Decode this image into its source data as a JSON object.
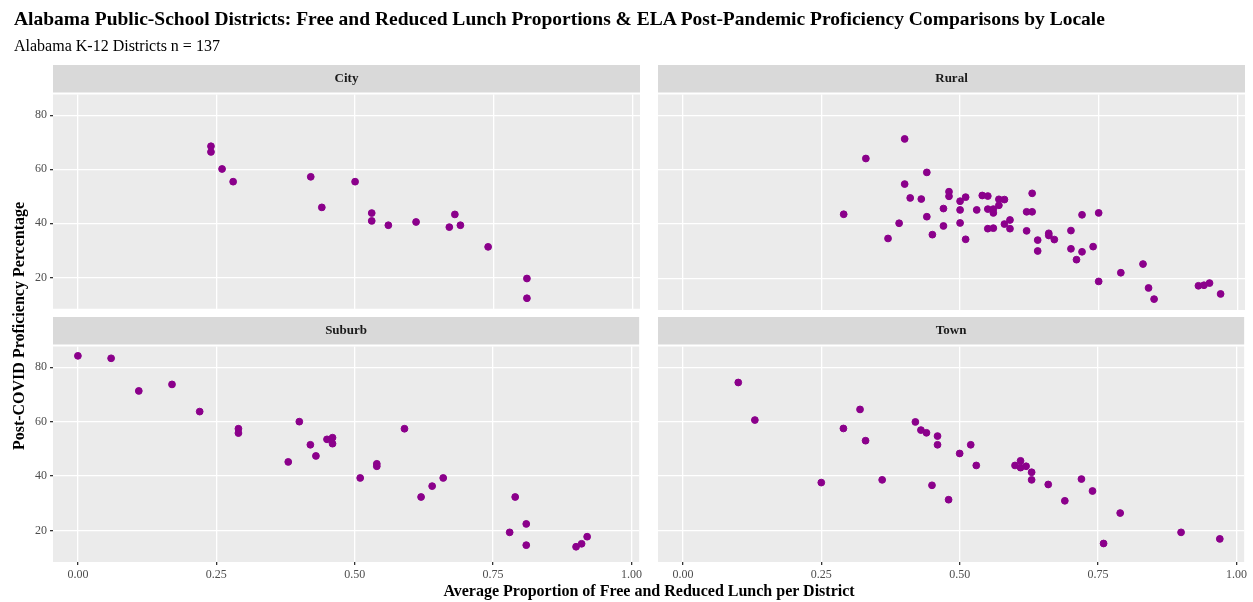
{
  "chart_data": [
    {
      "type": "scatter",
      "title": "City",
      "color": "#8b008b",
      "grid": true,
      "tick_labels": "y",
      "xlim": [
        -0.045,
        1.014
      ],
      "ylim": [
        8.4,
        87.6
      ],
      "xticks": [
        {
          "value": 0,
          "label": null
        },
        {
          "value": 0.25,
          "label": null
        },
        {
          "value": 0.5,
          "label": null
        },
        {
          "value": 0.75,
          "label": null
        },
        {
          "value": 1,
          "label": null
        }
      ],
      "yticks": [
        20,
        40,
        60,
        80
      ],
      "annotations": [
        "Alabama Public-School Districts: Free and Reduced Lunch Proportions & ELA Post-Pandemic Proficiency Comparisons by Locale",
        "Alabama K-12 Districts n = 137"
      ],
      "ylabel": "Post-COVID Proficiency Percentage",
      "x": [
        0.24,
        0.24,
        0.26,
        0.28,
        0.42,
        0.44,
        0.5,
        0.53,
        0.53,
        0.56,
        0.61,
        0.67,
        0.68,
        0.69,
        0.74,
        0.81,
        0.81
      ],
      "values": [
        68.5,
        66.4,
        60.1,
        55.4,
        57.2,
        45.9,
        55.4,
        43.8,
        40.9,
        39.3,
        40.5,
        38.6,
        43.3,
        39.3,
        31.3,
        19.6,
        12.3
      ]
    },
    {
      "type": "scatter",
      "title": "Rural",
      "color": "#8b008b",
      "grid": true,
      "tick_labels": false,
      "xlim": [
        -0.045,
        1.014
      ],
      "ylim": [
        8.4,
        87.6
      ],
      "xticks": [
        {
          "value": 0,
          "label": null
        },
        {
          "value": 0.25,
          "label": null
        },
        {
          "value": 0.5,
          "label": null
        },
        {
          "value": 0.75,
          "label": null
        },
        {
          "value": 1,
          "label": null
        }
      ],
      "yticks": [
        {
          "value": 20,
          "label": null
        },
        {
          "value": 40,
          "label": null
        },
        {
          "value": 60,
          "label": null
        },
        {
          "value": 80,
          "label": null
        }
      ],
      "x": [
        0.4,
        0.33,
        0.44,
        0.4,
        0.41,
        0.43,
        0.29,
        0.48,
        0.48,
        0.51,
        0.5,
        0.54,
        0.55,
        0.57,
        0.58,
        0.57,
        0.55,
        0.56,
        0.56,
        0.53,
        0.5,
        0.47,
        0.44,
        0.39,
        0.37,
        0.45,
        0.47,
        0.5,
        0.51,
        0.55,
        0.56,
        0.58,
        0.59,
        0.59,
        0.63,
        0.62,
        0.63,
        0.62,
        0.64,
        0.64,
        0.66,
        0.66,
        0.67,
        0.7,
        0.7,
        0.72,
        0.72,
        0.71,
        0.74,
        0.75,
        0.75,
        0.79,
        0.83,
        0.84,
        0.85,
        0.93,
        0.94,
        0.95,
        0.97
      ],
      "values": [
        71.3,
        64.1,
        59.0,
        54.7,
        49.6,
        49.2,
        43.6,
        51.9,
        50.2,
        49.9,
        48.4,
        50.5,
        50.3,
        49.1,
        49.0,
        46.9,
        45.5,
        45.5,
        44.1,
        45.2,
        45.2,
        45.7,
        42.7,
        40.3,
        34.7,
        36.1,
        39.3,
        40.4,
        34.4,
        38.3,
        38.5,
        40.0,
        41.5,
        38.3,
        51.3,
        44.5,
        44.5,
        37.5,
        34.1,
        30.1,
        36.6,
        35.8,
        34.3,
        37.6,
        30.9,
        43.4,
        29.8,
        26.9,
        31.7,
        44.1,
        18.9,
        22.1,
        25.3,
        16.5,
        12.4,
        17.3,
        17.5,
        18.3,
        14.3
      ]
    },
    {
      "type": "scatter",
      "title": "Suburb",
      "color": "#8b008b",
      "grid": true,
      "xlim": [
        -0.045,
        1.014
      ],
      "ylim": [
        8.4,
        87.6
      ],
      "xticks": [
        {
          "value": 0,
          "label": "0.00"
        },
        {
          "value": 0.25,
          "label": "0.25"
        },
        {
          "value": 0.5,
          "label": "0.50"
        },
        {
          "value": 0.75,
          "label": "0.75"
        },
        {
          "value": 1,
          "label": "1.00"
        }
      ],
      "yticks": [
        20,
        40,
        60,
        80
      ],
      "xlabel": "Average Proportion of Free and Reduced Lunch per District",
      "x": [
        0.0,
        0.06,
        0.11,
        0.17,
        0.22,
        0.29,
        0.29,
        0.38,
        0.4,
        0.42,
        0.43,
        0.45,
        0.46,
        0.46,
        0.51,
        0.54,
        0.54,
        0.59,
        0.62,
        0.64,
        0.66,
        0.78,
        0.79,
        0.81,
        0.81,
        0.9,
        0.91,
        0.92
      ],
      "values": [
        84.2,
        83.3,
        71.3,
        73.7,
        63.7,
        57.4,
        55.8,
        45.2,
        60.0,
        51.5,
        47.4,
        53.5,
        54.1,
        51.9,
        39.3,
        44.5,
        43.6,
        57.4,
        32.3,
        36.3,
        39.3,
        19.3,
        32.3,
        22.4,
        14.6,
        14.0,
        15.1,
        17.7
      ]
    },
    {
      "type": "scatter",
      "title": "Town",
      "color": "#8b008b",
      "grid": true,
      "tick_labels": "x",
      "xlim": [
        -0.045,
        1.014
      ],
      "ylim": [
        8.4,
        87.6
      ],
      "xticks": [
        {
          "value": 0,
          "label": "0.00"
        },
        {
          "value": 0.25,
          "label": "0.25"
        },
        {
          "value": 0.5,
          "label": "0.50"
        },
        {
          "value": 0.75,
          "label": "0.75"
        },
        {
          "value": 1,
          "label": "1.00"
        }
      ],
      "yticks": [
        {
          "value": 20,
          "label": null
        },
        {
          "value": 40,
          "label": null
        },
        {
          "value": 60,
          "label": null
        },
        {
          "value": 80,
          "label": null
        }
      ],
      "x": [
        0.1,
        0.13,
        0.25,
        0.29,
        0.32,
        0.33,
        0.36,
        0.42,
        0.43,
        0.44,
        0.46,
        0.46,
        0.45,
        0.48,
        0.5,
        0.52,
        0.53,
        0.6,
        0.61,
        0.61,
        0.62,
        0.63,
        0.63,
        0.66,
        0.69,
        0.72,
        0.74,
        0.79,
        0.76,
        0.9,
        0.97
      ],
      "values": [
        74.4,
        60.6,
        37.6,
        57.5,
        64.5,
        53.0,
        38.6,
        59.9,
        56.9,
        55.9,
        54.7,
        51.5,
        36.6,
        31.3,
        48.3,
        51.5,
        43.9,
        43.9,
        45.6,
        43.1,
        43.6,
        41.4,
        38.6,
        36.9,
        30.9,
        38.9,
        34.5,
        26.4,
        15.2,
        19.3,
        16.9
      ]
    }
  ]
}
